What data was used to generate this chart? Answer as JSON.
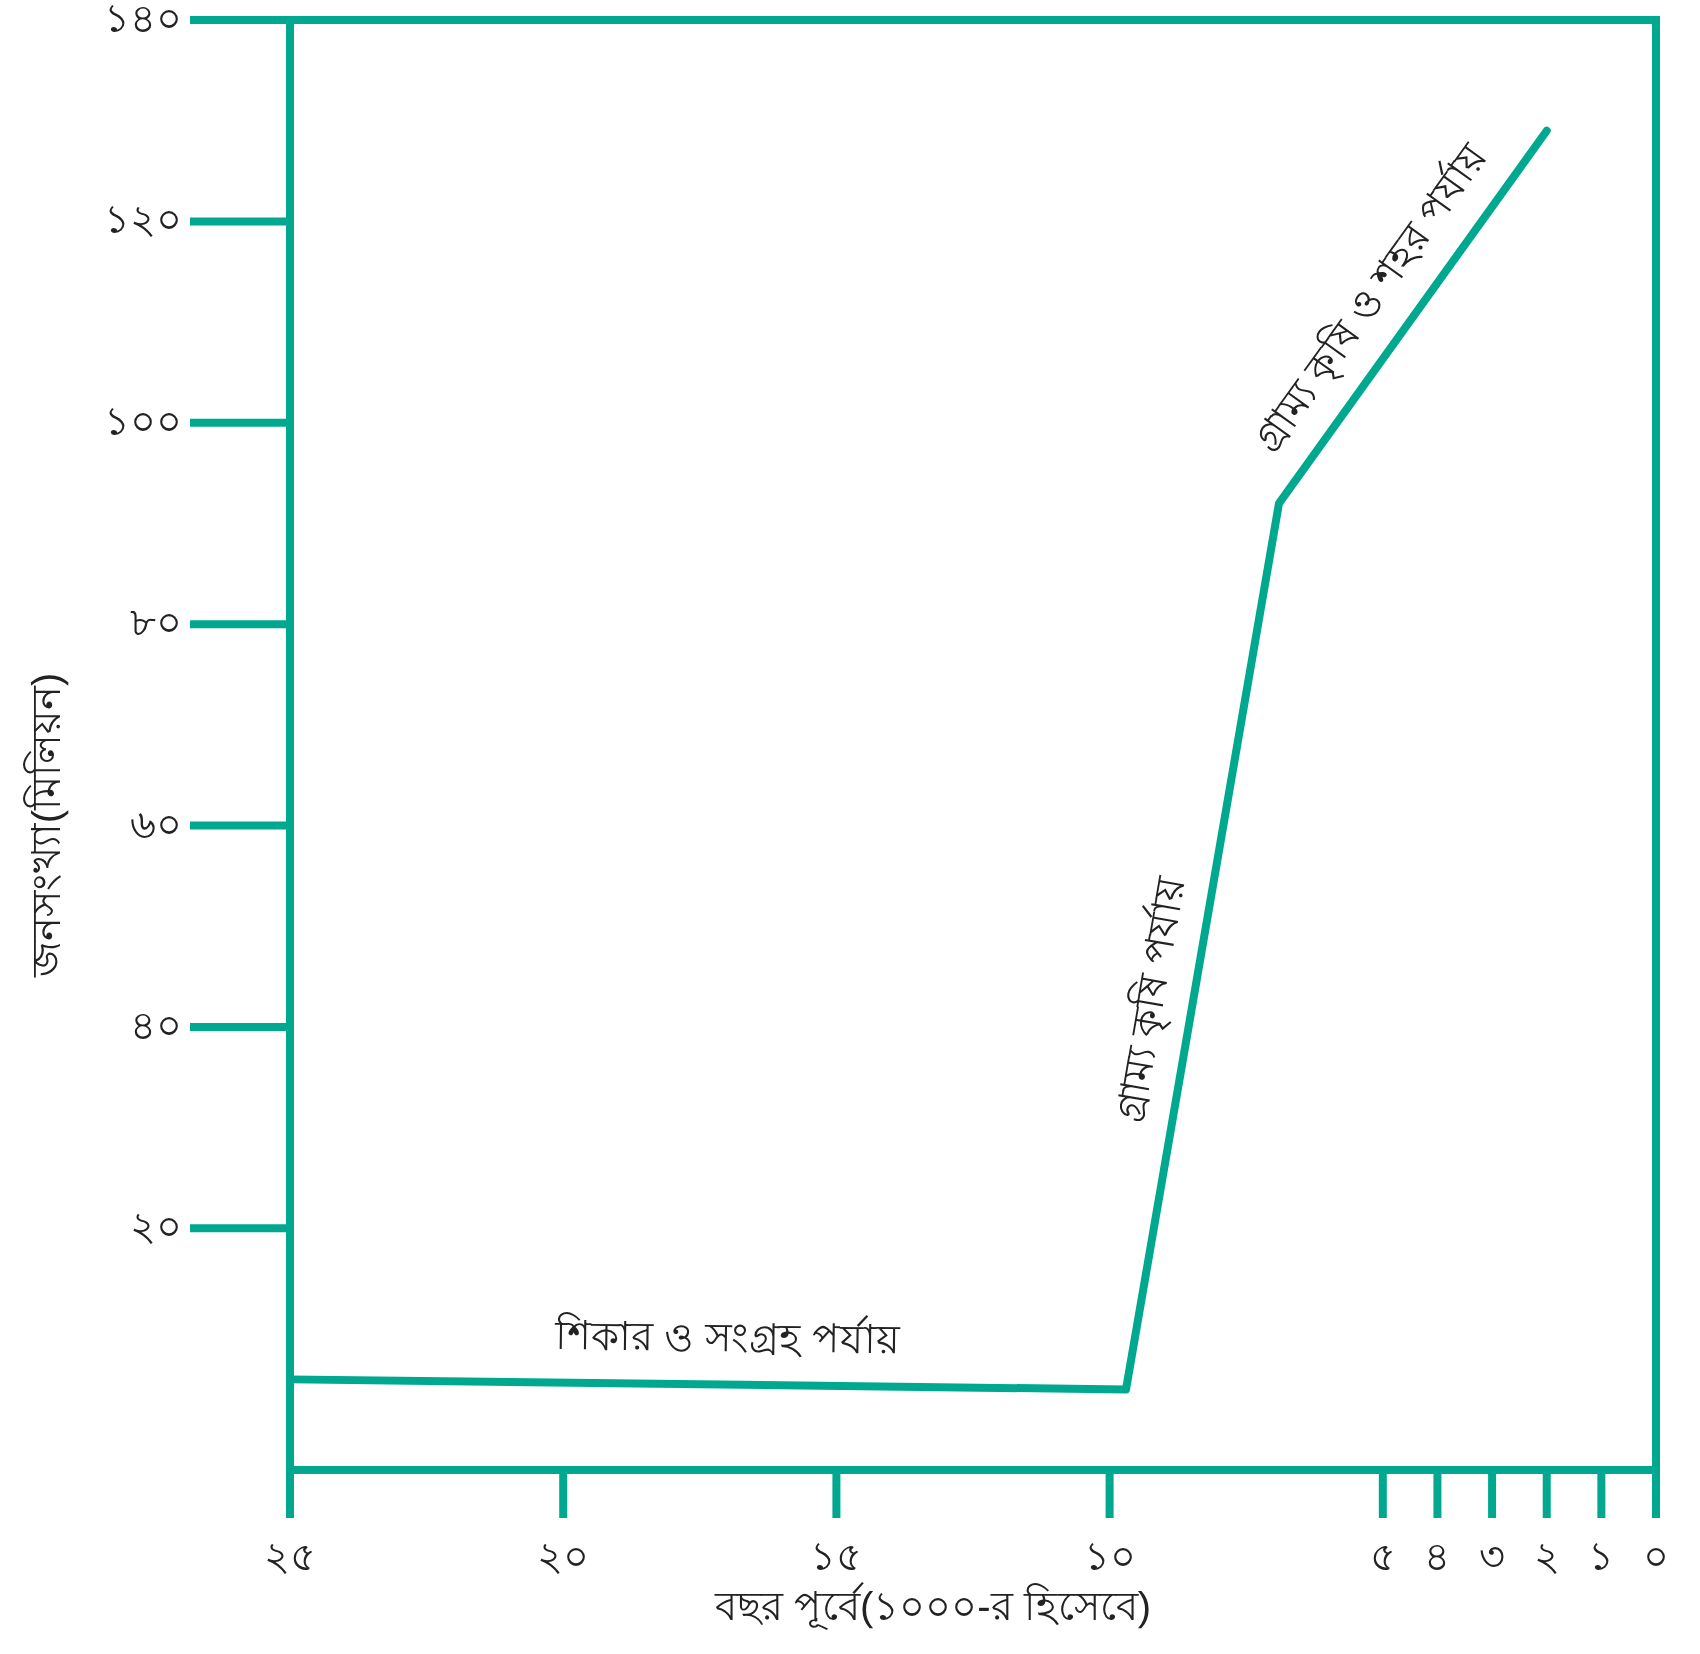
{
  "chart_data": {
    "type": "line",
    "xlabel": "বছর পূর্বে(১০০০-র হিসেবে)",
    "ylabel": "জনসংখ্যা(মিলিয়ন)",
    "x": [
      25,
      9.7,
      6.9,
      2
    ],
    "values": [
      5,
      4,
      92,
      129
    ],
    "color": "#00a88f",
    "xlim": [
      25,
      0
    ],
    "ylim": [
      -4,
      140
    ],
    "xticks": [
      {
        "value": 25,
        "label": "২৫"
      },
      {
        "value": 20,
        "label": "২০"
      },
      {
        "value": 15,
        "label": "১৫"
      },
      {
        "value": 10,
        "label": "১০"
      },
      {
        "value": 5,
        "label": "৫"
      },
      {
        "value": 4,
        "label": "৪"
      },
      {
        "value": 3,
        "label": "৩"
      },
      {
        "value": 2,
        "label": "২"
      },
      {
        "value": 1,
        "label": "১"
      },
      {
        "value": 0,
        "label": "০"
      }
    ],
    "yticks": [
      {
        "value": 20,
        "label": "২০"
      },
      {
        "value": 40,
        "label": "৪০"
      },
      {
        "value": 60,
        "label": "৬০"
      },
      {
        "value": 80,
        "label": "৮০"
      },
      {
        "value": 100,
        "label": "১০০"
      },
      {
        "value": 120,
        "label": "১২০"
      },
      {
        "value": 140,
        "label": "১৪০"
      }
    ],
    "annotations": [
      {
        "text": "শিকার ও সংগ্রহ পর্যায়",
        "x": 17,
        "y": 5
      },
      {
        "text": "গ্রাম্য কৃষি পর্যায়",
        "x": 8.5,
        "y": 42
      },
      {
        "text": "গ্রাম্য কৃষি ও শহর পর্যায়",
        "x": 4.6,
        "y": 110
      }
    ]
  }
}
